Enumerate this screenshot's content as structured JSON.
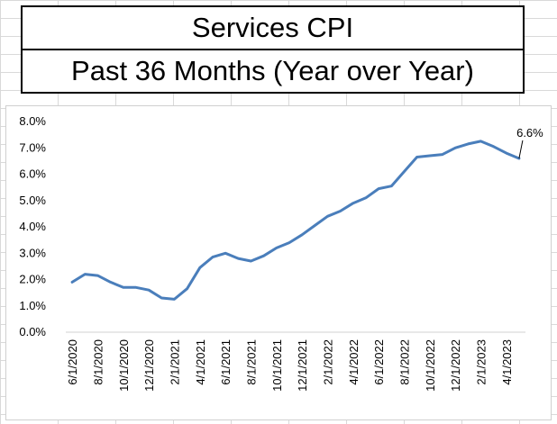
{
  "titles": {
    "line1": "Services CPI",
    "line2": "Past 36 Months (Year over Year)"
  },
  "colors": {
    "line": "#4a7ebb",
    "axis": "#d0d0d0"
  },
  "chart_data": {
    "type": "line",
    "title": "Services CPI",
    "subtitle": "Past 36 Months (Year over Year)",
    "xlabel": "",
    "ylabel": "",
    "ylim": [
      0,
      8
    ],
    "y_ticks": [
      0,
      1,
      2,
      3,
      4,
      5,
      6,
      7,
      8
    ],
    "y_tick_labels": [
      "0.0%",
      "1.0%",
      "2.0%",
      "3.0%",
      "4.0%",
      "5.0%",
      "6.0%",
      "7.0%",
      "8.0%"
    ],
    "grid": false,
    "legend": "none",
    "x": [
      "6/1/2020",
      "7/1/2020",
      "8/1/2020",
      "9/1/2020",
      "10/1/2020",
      "11/1/2020",
      "12/1/2020",
      "1/1/2021",
      "2/1/2021",
      "3/1/2021",
      "4/1/2021",
      "5/1/2021",
      "6/1/2021",
      "7/1/2021",
      "8/1/2021",
      "9/1/2021",
      "10/1/2021",
      "11/1/2021",
      "12/1/2021",
      "1/1/2022",
      "2/1/2022",
      "3/1/2022",
      "4/1/2022",
      "5/1/2022",
      "6/1/2022",
      "7/1/2022",
      "8/1/2022",
      "9/1/2022",
      "10/1/2022",
      "11/1/2022",
      "12/1/2022",
      "1/1/2023",
      "2/1/2023",
      "3/1/2023",
      "4/1/2023",
      "5/1/2023"
    ],
    "x_tick_labels": [
      "6/1/2020",
      "8/1/2020",
      "10/1/2020",
      "12/1/2020",
      "2/1/2021",
      "4/1/2021",
      "6/1/2021",
      "8/1/2021",
      "10/1/2021",
      "12/1/2021",
      "2/1/2022",
      "4/1/2022",
      "6/1/2022",
      "8/1/2022",
      "10/1/2022",
      "12/1/2022",
      "2/1/2023",
      "4/1/2023"
    ],
    "series": [
      {
        "values": [
          1.9,
          2.2,
          2.15,
          1.9,
          1.7,
          1.7,
          1.6,
          1.3,
          1.25,
          1.65,
          2.45,
          2.85,
          3.0,
          2.8,
          2.7,
          2.9,
          3.2,
          3.4,
          3.7,
          4.05,
          4.4,
          4.6,
          4.9,
          5.1,
          5.45,
          5.55,
          6.1,
          6.65,
          6.7,
          6.75,
          7.0,
          7.15,
          7.25,
          7.05,
          6.8,
          6.6
        ]
      }
    ],
    "annotations": [
      {
        "text": "6.6%",
        "x": "5/1/2023",
        "y": 6.6
      }
    ]
  }
}
